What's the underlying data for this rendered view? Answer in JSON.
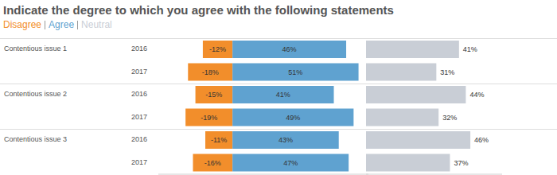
{
  "chart_data": [
    {
      "type": "bar",
      "title": "Indicate the degree to which you agree with the following statements",
      "orientation": "horizontal",
      "stacked": true,
      "data_labels": true,
      "tick_labels": false,
      "groups": [
        "Contentious issue 1",
        "Contentious issue 2",
        "Contentious issue 3"
      ],
      "categories": [
        "2016",
        "2017",
        "2016",
        "2017",
        "2016",
        "2017"
      ],
      "xlim": [
        -30,
        55
      ],
      "xticks": [],
      "series": [
        {
          "name": "Disagree",
          "color": "#f28e2b",
          "values": [
            -12,
            -18,
            -15,
            -19,
            -11,
            -16
          ],
          "value_labels": [
            "-12%",
            "-18%",
            "-15%",
            "-19%",
            "-11%",
            "-16%"
          ]
        },
        {
          "name": "Agree",
          "color": "#5fa2d0",
          "values": [
            46,
            51,
            41,
            49,
            43,
            47
          ],
          "value_labels": [
            "46%",
            "51%",
            "41%",
            "49%",
            "43%",
            "47%"
          ]
        }
      ]
    },
    {
      "type": "bar",
      "orientation": "horizontal",
      "data_labels": true,
      "tick_labels": false,
      "categories": [
        "2016",
        "2017",
        "2016",
        "2017",
        "2016",
        "2017"
      ],
      "xlim": [
        0,
        60
      ],
      "xticks": [],
      "series": [
        {
          "name": "Neutral",
          "color": "#c9ced6",
          "values": [
            41,
            31,
            44,
            32,
            46,
            37
          ],
          "value_labels": [
            "41%",
            "31%",
            "44%",
            "32%",
            "46%",
            "37%"
          ]
        }
      ]
    }
  ]
}
